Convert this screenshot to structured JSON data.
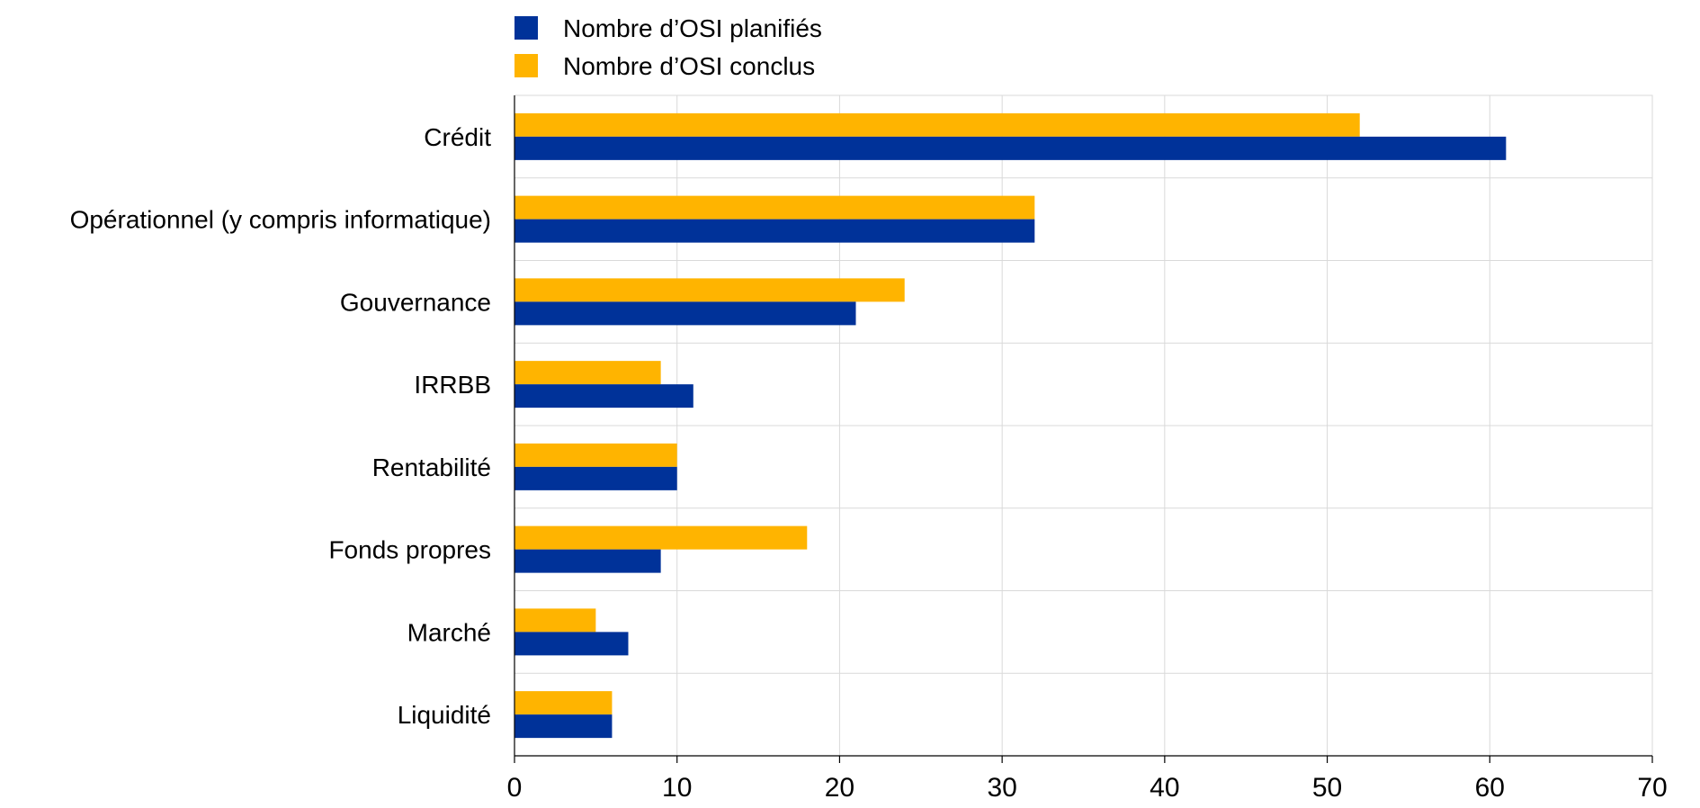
{
  "chart_data": {
    "type": "bar",
    "orientation": "horizontal",
    "categories": [
      "Crédit",
      "Opérationnel (y compris informatique)",
      "Gouvernance",
      "IRRBB",
      "Rentabilité",
      "Fonds propres",
      "Marché",
      "Liquidité"
    ],
    "series": [
      {
        "name": "Nombre d’OSI planifiés",
        "color": "#003299",
        "values": [
          61,
          32,
          21,
          11,
          10,
          9,
          7,
          6
        ]
      },
      {
        "name": "Nombre d’OSI conclus",
        "color": "#ffb400",
        "values": [
          52,
          32,
          24,
          9,
          10,
          18,
          5,
          6
        ]
      }
    ],
    "xlim": [
      0,
      70
    ],
    "xticks": [
      0,
      10,
      20,
      30,
      40,
      50,
      60,
      70
    ],
    "xlabel": "",
    "ylabel": "",
    "title": "",
    "grid": "vertical",
    "legend": "top-left"
  }
}
